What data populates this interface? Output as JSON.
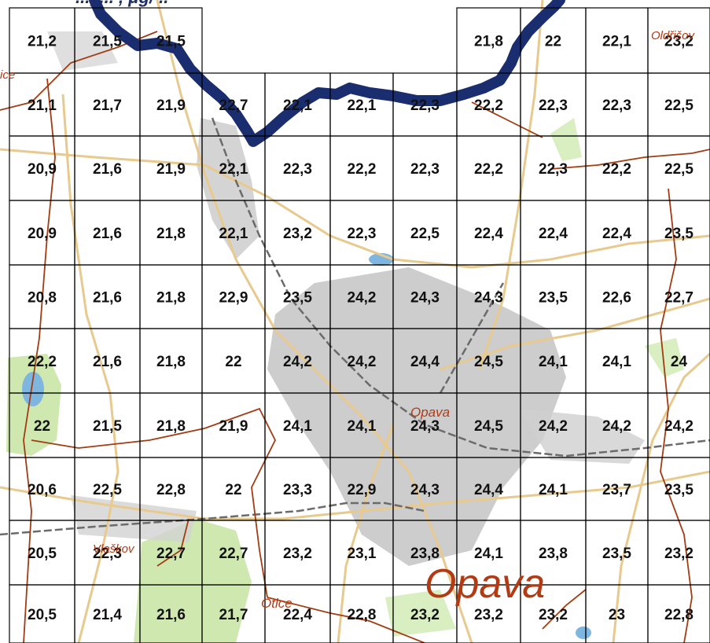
{
  "map": {
    "header_fragment": "...,  ... , μg/  ..",
    "place_labels": {
      "city_large": "Opava",
      "city_small": "Opava",
      "otice": "Otice",
      "oldrisov": "Oldřišov",
      "vlaskov": "Vlaškov",
      "ice": "ice"
    },
    "grid": {
      "columns": 11,
      "rows": 10,
      "cells": [
        [
          "21,2",
          "21,5",
          "21,5",
          "",
          "",
          "",
          "",
          "21,8",
          "22",
          "22,1",
          "23,2"
        ],
        [
          "21,1",
          "21,7",
          "21,9",
          "22,7",
          "22,1",
          "22,1",
          "22,3",
          "22,2",
          "22,3",
          "22,3",
          "22,5"
        ],
        [
          "20,9",
          "21,6",
          "21,9",
          "22,1",
          "22,3",
          "22,2",
          "22,3",
          "22,2",
          "22,3",
          "22,2",
          "22,5"
        ],
        [
          "20,9",
          "21,6",
          "21,8",
          "22,1",
          "23,2",
          "22,3",
          "22,5",
          "22,4",
          "22,4",
          "22,4",
          "23,5"
        ],
        [
          "20,8",
          "21,6",
          "21,8",
          "22,9",
          "23,5",
          "24,2",
          "24,3",
          "24,3",
          "23,5",
          "22,6",
          "22,7"
        ],
        [
          "22,2",
          "21,6",
          "21,8",
          "22",
          "24,2",
          "24,2",
          "24,4",
          "24,5",
          "24,1",
          "24,1",
          "24"
        ],
        [
          "22",
          "21,5",
          "21,8",
          "21,9",
          "24,1",
          "24,1",
          "24,3",
          "24,5",
          "24,2",
          "24,2",
          "24,2"
        ],
        [
          "20,6",
          "22,5",
          "22,8",
          "22",
          "23,3",
          "22,9",
          "24,3",
          "24,4",
          "24,1",
          "23,7",
          "23,5"
        ],
        [
          "20,5",
          "22,3",
          "22,7",
          "22,7",
          "23,2",
          "23,1",
          "23,8",
          "24,1",
          "23,8",
          "23,5",
          "23,2"
        ],
        [
          "20,5",
          "21,4",
          "21,6",
          "21,7",
          "22,4",
          "22,8",
          "23,2",
          "23,2",
          "23,2",
          "23",
          "22,8"
        ]
      ]
    },
    "colors": {
      "grid_line": "#000000",
      "border_line": "#1a2d6e",
      "road": "#e8c98e",
      "admin_boundary": "#a23c12",
      "railway": "#6b6b6b",
      "urban": "#b8b8b8",
      "forest": "#cfe8b0",
      "water": "#7fb6e0"
    }
  }
}
